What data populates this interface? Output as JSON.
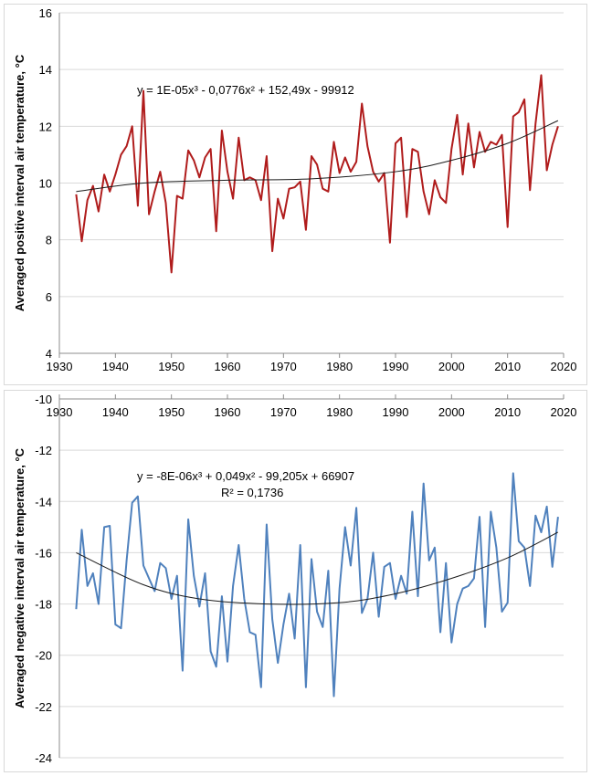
{
  "chart_data": [
    {
      "type": "line",
      "title": "",
      "xlabel": "",
      "ylabel": "Averaged positive interval air temperature, °C",
      "xlim": [
        1930,
        2020
      ],
      "ylim": [
        4,
        16
      ],
      "x_ticks": [
        "1930",
        "1940",
        "1950",
        "1960",
        "1970",
        "1980",
        "1990",
        "2000",
        "2010",
        "2020"
      ],
      "y_ticks": [
        "4",
        "6",
        "8",
        "10",
        "12",
        "14",
        "16"
      ],
      "grid": true,
      "line_color": "#b01c1c",
      "trend_color": "#1a1a1a",
      "trend_label": "y = 1E-05x³ - 0,0776x² + 152,49x - 99912",
      "trend_points": [
        [
          1933,
          9.7
        ],
        [
          1945,
          10.0
        ],
        [
          1960,
          10.1
        ],
        [
          1975,
          10.15
        ],
        [
          1990,
          10.4
        ],
        [
          2000,
          10.8
        ],
        [
          2010,
          11.4
        ],
        [
          2019,
          12.2
        ]
      ],
      "series": [
        {
          "x": [
            1933,
            1934,
            1935,
            1936,
            1937,
            1938,
            1939,
            1940,
            1941,
            1942,
            1943,
            1944,
            1945,
            1946,
            1947,
            1948,
            1949,
            1950,
            1951,
            1952,
            1953,
            1954,
            1955,
            1956,
            1957,
            1958,
            1959,
            1960,
            1961,
            1962,
            1963,
            1964,
            1965,
            1966,
            1967,
            1968,
            1969,
            1970,
            1971,
            1972,
            1973,
            1974,
            1975,
            1976,
            1977,
            1978,
            1979,
            1980,
            1981,
            1982,
            1983,
            1984,
            1985,
            1986,
            1987,
            1988,
            1989,
            1990,
            1991,
            1992,
            1993,
            1994,
            1995,
            1996,
            1997,
            1998,
            1999,
            2000,
            2001,
            2002,
            2003,
            2004,
            2005,
            2006,
            2007,
            2008,
            2009,
            2010,
            2011,
            2012,
            2013,
            2014,
            2015,
            2016,
            2017,
            2018,
            2019
          ],
          "values": [
            9.6,
            7.95,
            9.4,
            9.9,
            9.0,
            10.3,
            9.7,
            10.3,
            11.0,
            11.3,
            12.0,
            9.2,
            13.25,
            8.9,
            9.7,
            10.4,
            9.3,
            6.85,
            9.55,
            9.45,
            11.15,
            10.8,
            10.2,
            10.9,
            11.2,
            8.3,
            11.85,
            10.4,
            9.45,
            11.6,
            10.1,
            10.2,
            10.1,
            9.4,
            10.95,
            7.6,
            9.45,
            8.75,
            9.8,
            9.85,
            10.05,
            8.35,
            10.95,
            10.65,
            9.8,
            9.7,
            11.45,
            10.35,
            10.9,
            10.4,
            10.75,
            12.8,
            11.3,
            10.4,
            10.05,
            10.35,
            7.9,
            11.4,
            11.6,
            8.8,
            11.2,
            11.1,
            9.7,
            8.9,
            10.1,
            9.5,
            9.3,
            11.2,
            12.4,
            10.3,
            12.1,
            10.55,
            11.8,
            11.1,
            11.45,
            11.35,
            11.7,
            8.45,
            12.35,
            12.5,
            12.95,
            9.75,
            12.1,
            13.8,
            10.45,
            11.35,
            12.0
          ]
        }
      ]
    },
    {
      "type": "line",
      "title": "",
      "xlabel": "",
      "ylabel": "Averaged negative interval air temperature, °C",
      "xlim": [
        1930,
        2020
      ],
      "ylim": [
        -24,
        -10
      ],
      "x_ticks": [
        "1930",
        "1940",
        "1950",
        "1960",
        "1970",
        "1980",
        "1990",
        "2000",
        "2010",
        "2020"
      ],
      "y_ticks": [
        "-10",
        "-12",
        "-14",
        "-16",
        "-18",
        "-20",
        "-22",
        "-24"
      ],
      "x_axis_position": "top",
      "grid": true,
      "line_color": "#4f81bd",
      "trend_color": "#1a1a1a",
      "trend_label": "y = -8E-06x³ + 0,049x² - 99,205x + 66907",
      "r2_label": "R² = 0,1736",
      "trend_points": [
        [
          1933,
          -16.0
        ],
        [
          1945,
          -17.25
        ],
        [
          1955,
          -17.8
        ],
        [
          1967,
          -18.0
        ],
        [
          1980,
          -17.95
        ],
        [
          1990,
          -17.6
        ],
        [
          2000,
          -17.0
        ],
        [
          2010,
          -16.2
        ],
        [
          2019,
          -15.2
        ]
      ],
      "series": [
        {
          "x": [
            1933,
            1934,
            1935,
            1936,
            1937,
            1938,
            1939,
            1940,
            1941,
            1942,
            1943,
            1944,
            1945,
            1946,
            1947,
            1948,
            1949,
            1950,
            1951,
            1952,
            1953,
            1954,
            1955,
            1956,
            1957,
            1958,
            1959,
            1960,
            1961,
            1962,
            1963,
            1964,
            1965,
            1966,
            1967,
            1968,
            1969,
            1970,
            1971,
            1972,
            1973,
            1974,
            1975,
            1976,
            1977,
            1978,
            1979,
            1980,
            1981,
            1982,
            1983,
            1984,
            1985,
            1986,
            1987,
            1988,
            1989,
            1990,
            1991,
            1992,
            1993,
            1994,
            1995,
            1996,
            1997,
            1998,
            1999,
            2000,
            2001,
            2002,
            2003,
            2004,
            2005,
            2006,
            2007,
            2008,
            2009,
            2010,
            2011,
            2012,
            2013,
            2014,
            2015,
            2016,
            2017,
            2018,
            2019
          ],
          "values": [
            -18.2,
            -15.1,
            -17.3,
            -16.8,
            -18.0,
            -15.0,
            -14.95,
            -18.8,
            -18.95,
            -16.3,
            -14.05,
            -13.8,
            -16.5,
            -17.0,
            -17.5,
            -16.4,
            -16.6,
            -17.8,
            -16.9,
            -20.6,
            -14.7,
            -16.9,
            -18.1,
            -16.8,
            -19.85,
            -20.45,
            -17.7,
            -20.25,
            -17.3,
            -15.7,
            -17.8,
            -19.1,
            -19.2,
            -21.25,
            -14.9,
            -18.6,
            -20.3,
            -18.8,
            -17.6,
            -19.35,
            -15.7,
            -21.25,
            -16.25,
            -18.3,
            -18.9,
            -16.7,
            -21.6,
            -17.4,
            -15.0,
            -16.5,
            -14.25,
            -18.35,
            -17.8,
            -16.0,
            -18.5,
            -16.55,
            -16.4,
            -17.8,
            -16.9,
            -17.6,
            -14.4,
            -17.7,
            -13.3,
            -16.3,
            -15.8,
            -19.1,
            -16.4,
            -19.5,
            -18.0,
            -17.4,
            -17.3,
            -17.0,
            -14.6,
            -18.9,
            -14.4,
            -15.8,
            -18.3,
            -17.95,
            -12.9,
            -15.55,
            -15.8,
            -17.3,
            -14.55,
            -15.2,
            -14.2,
            -16.55,
            -14.6
          ]
        }
      ]
    }
  ]
}
